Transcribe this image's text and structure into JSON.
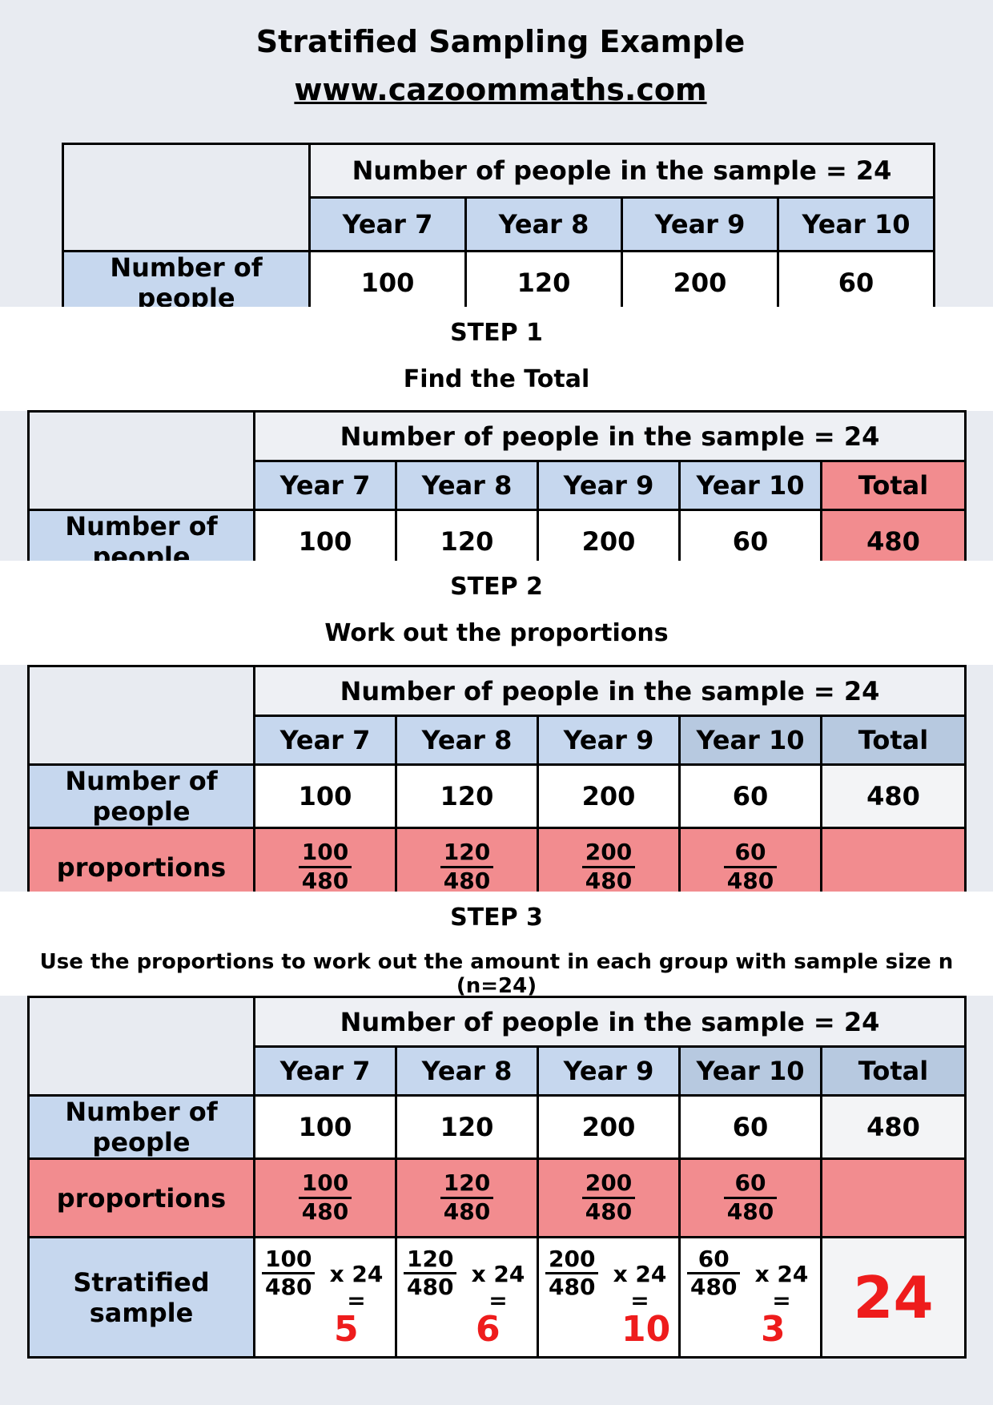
{
  "header": {
    "title": "Stratified Sampling Example",
    "website": "www.cazoommaths.com"
  },
  "table": {
    "sample_header": "Number of people in the sample = 24",
    "years": [
      "Year 7",
      "Year 8",
      "Year 9",
      "Year 10"
    ],
    "total_label": "Total",
    "row_people": "Number of people",
    "people": [
      "100",
      "120",
      "200",
      "60"
    ],
    "total": "480",
    "row_proportions": "proportions",
    "denominator": "480",
    "row_stratified": "Stratified sample",
    "multiplier": "x 24 =",
    "results": [
      "5",
      "6",
      "10",
      "3"
    ],
    "results_total": "24"
  },
  "steps": {
    "step1_label": "STEP 1",
    "step1_text": "Find the Total",
    "step2_label": "STEP 2",
    "step2_text": "Work out the proportions",
    "step3_label": "STEP 3",
    "step3_text": "Use the proportions to work out the amount in each group with sample size n (n=24)"
  },
  "colors": {
    "background": "#e8ebf1",
    "header_blue": "#c6d7ee",
    "highlight_red": "#f28c8f",
    "result_red": "#ee1c1c"
  }
}
